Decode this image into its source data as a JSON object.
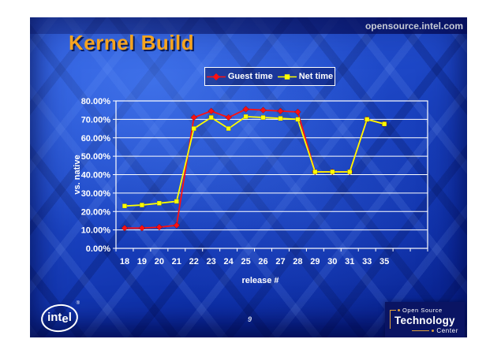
{
  "slide": {
    "site_url": "opensource.intel.com",
    "title": "Kernel Build",
    "slide_number": "9"
  },
  "logos": {
    "intel": {
      "text_start": "int",
      "text_drop": "e",
      "text_end": "l",
      "registered": "®"
    },
    "ostc": {
      "line1": "Open Source",
      "line2": "Technology",
      "line3": "Center"
    }
  },
  "chart_data": {
    "type": "line",
    "title": "",
    "categories": [
      "18",
      "19",
      "20",
      "21",
      "22",
      "23",
      "24",
      "25",
      "26",
      "27",
      "28",
      "29",
      "30",
      "31",
      "33",
      "35"
    ],
    "series": [
      {
        "name": "Guest time",
        "color": "#ff1010",
        "marker": "diamond",
        "values": [
          11,
          11,
          11.5,
          12.5,
          71,
          74.5,
          71,
          75.5,
          75,
          74.5,
          74,
          41.5,
          41.5,
          41.5,
          70,
          67.5
        ]
      },
      {
        "name": "Net time",
        "color": "#ffff00",
        "marker": "square",
        "values": [
          23,
          23.5,
          24.5,
          25.5,
          65,
          71,
          65,
          71.5,
          71,
          70.5,
          70,
          41.5,
          41.5,
          41.5,
          70,
          67.5
        ]
      }
    ],
    "xlabel": "release #",
    "ylabel": "vs. native",
    "ylim": [
      0,
      80
    ],
    "ytick_step": 10,
    "ytick_labels": [
      "0.00%",
      "10.00%",
      "20.00%",
      "30.00%",
      "40.00%",
      "50.00%",
      "60.00%",
      "70.00%",
      "80.00%"
    ],
    "grid": true,
    "plot_border": true,
    "legend_position": "top-center",
    "gridline_color": "#ffffff",
    "axis_text_color": "#ffffff"
  },
  "colors": {
    "slide_bg": "#1d47c6",
    "title_text": "#f6a41f",
    "site_text": "#c7cbd6",
    "ostc_bg": "#0a1463",
    "ostc_accent": "#e0a23c"
  }
}
